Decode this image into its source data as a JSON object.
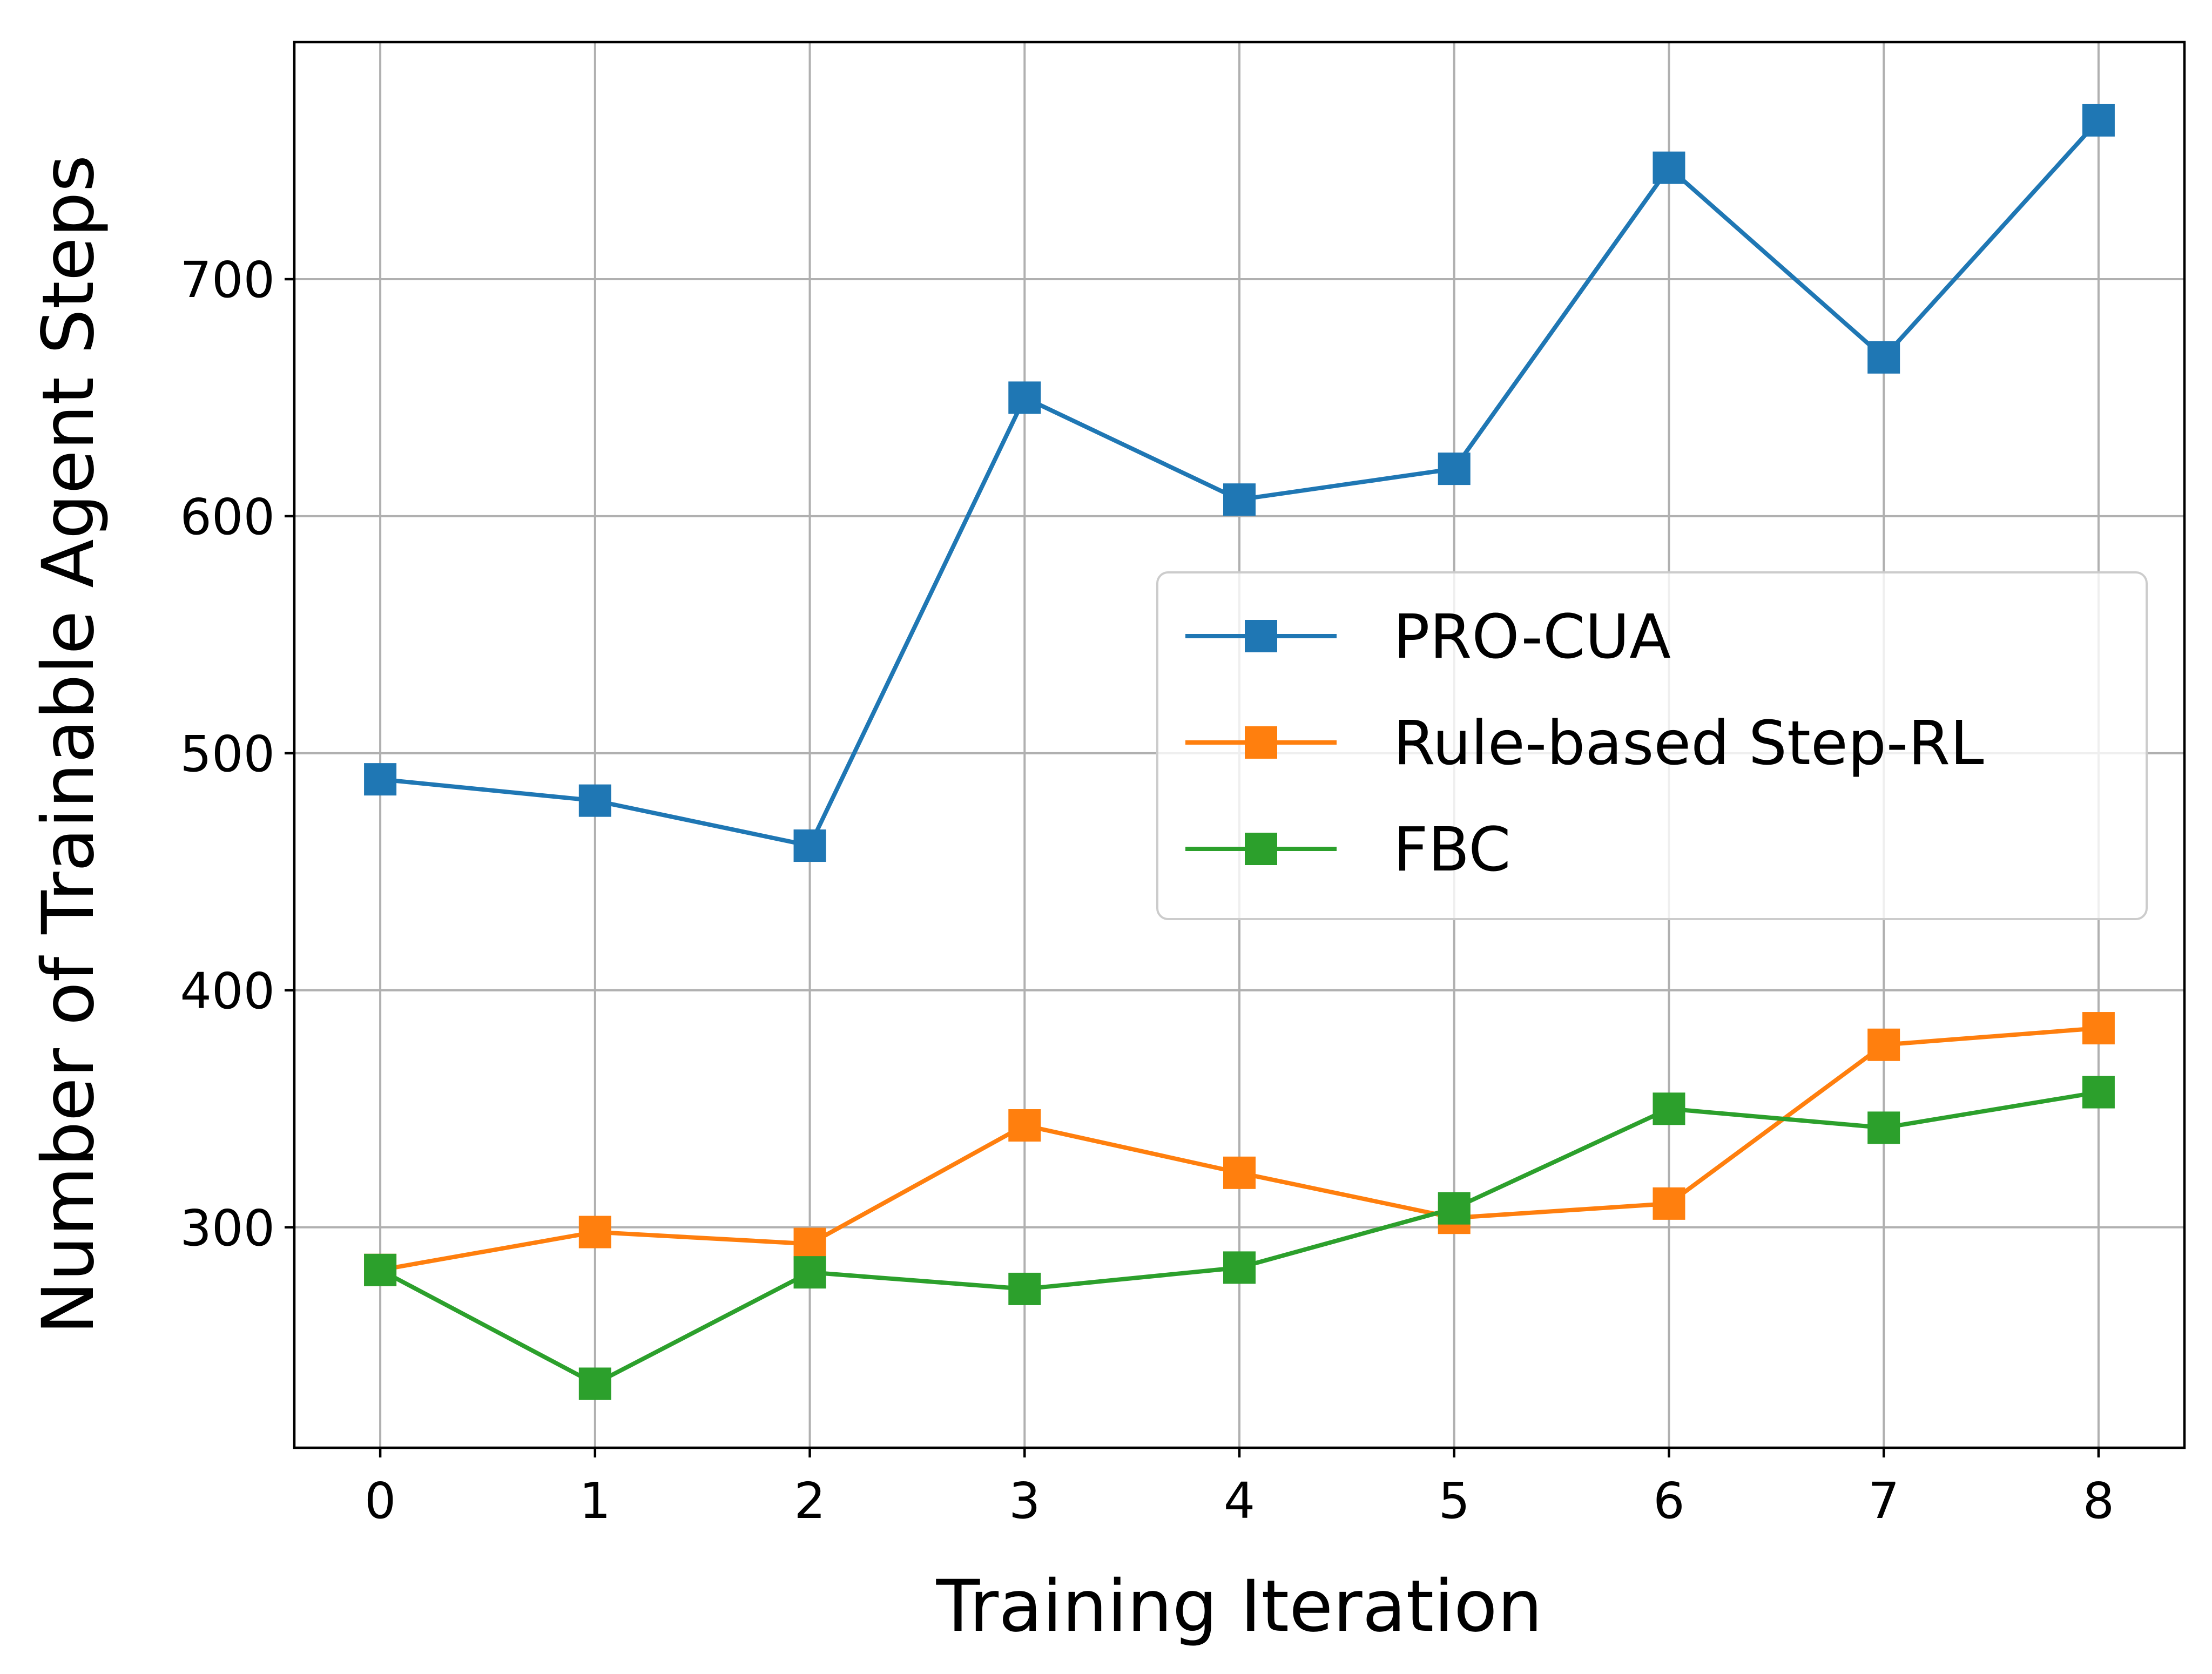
{
  "chart_data": {
    "type": "line",
    "xlabel": "Training Iteration",
    "ylabel": "Number of Trainable Agent Steps",
    "x": [
      0,
      1,
      2,
      3,
      4,
      5,
      6,
      7,
      8
    ],
    "xlim": [
      -0.4,
      8.4
    ],
    "ylim": [
      207,
      800
    ],
    "xticks": [
      "0",
      "1",
      "2",
      "3",
      "4",
      "5",
      "6",
      "7",
      "8"
    ],
    "yticks": [
      300,
      400,
      500,
      600,
      700
    ],
    "grid": true,
    "legend_position": "center-right",
    "marker": "square",
    "series": [
      {
        "name": "PRO-CUA",
        "color": "#1f77b4",
        "values": [
          489,
          480,
          461,
          650,
          607,
          620,
          747,
          667,
          767
        ]
      },
      {
        "name": "Rule-based Step-RL",
        "color": "#ff7f0e",
        "values": [
          282,
          298,
          293,
          343,
          323,
          304,
          310,
          377,
          384
        ]
      },
      {
        "name": "FBC",
        "color": "#2ca02c",
        "values": [
          282,
          234,
          281,
          274,
          283,
          308,
          350,
          342,
          357
        ]
      }
    ]
  }
}
